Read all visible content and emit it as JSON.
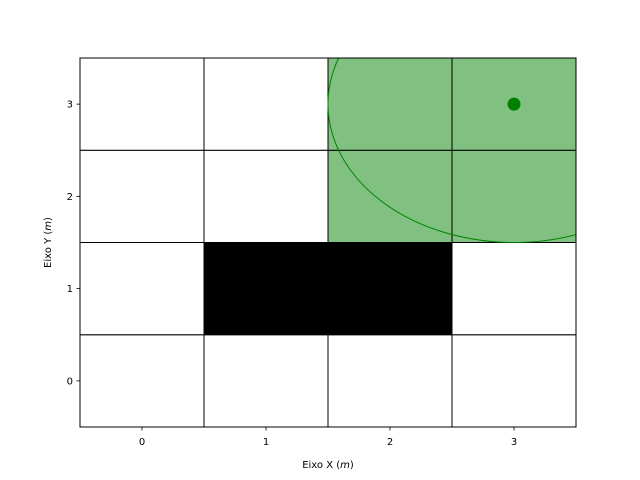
{
  "chart_data": {
    "type": "heatmap",
    "title": "",
    "xlabel": "Eixo X (m)",
    "ylabel": "Eixo Y (m)",
    "xlabel_parts": {
      "prefix": "Eixo X (",
      "unit": "m",
      "suffix": ")"
    },
    "ylabel_parts": {
      "prefix": "Eixo Y (",
      "unit": "m",
      "suffix": ")"
    },
    "xlim": [
      -0.5,
      3.5
    ],
    "ylim": [
      -0.5,
      3.5
    ],
    "x_ticks": [
      0,
      1,
      2,
      3
    ],
    "y_ticks": [
      0,
      1,
      2,
      3
    ],
    "grid": true,
    "cells": [
      {
        "x": 0,
        "y": 0,
        "state": "free"
      },
      {
        "x": 1,
        "y": 0,
        "state": "free"
      },
      {
        "x": 2,
        "y": 0,
        "state": "free"
      },
      {
        "x": 3,
        "y": 0,
        "state": "free"
      },
      {
        "x": 0,
        "y": 1,
        "state": "free"
      },
      {
        "x": 1,
        "y": 1,
        "state": "obstacle"
      },
      {
        "x": 2,
        "y": 1,
        "state": "obstacle"
      },
      {
        "x": 3,
        "y": 1,
        "state": "free"
      },
      {
        "x": 0,
        "y": 2,
        "state": "free"
      },
      {
        "x": 1,
        "y": 2,
        "state": "free"
      },
      {
        "x": 2,
        "y": 2,
        "state": "highlight"
      },
      {
        "x": 3,
        "y": 2,
        "state": "highlight"
      },
      {
        "x": 0,
        "y": 3,
        "state": "free"
      },
      {
        "x": 1,
        "y": 3,
        "state": "free"
      },
      {
        "x": 2,
        "y": 3,
        "state": "highlight"
      },
      {
        "x": 3,
        "y": 3,
        "state": "highlight"
      }
    ],
    "point": {
      "x": 3,
      "y": 3
    },
    "circle": {
      "cx": 3,
      "cy": 3,
      "r": 1.5
    },
    "colors": {
      "free": "#ffffff",
      "obstacle": "#000000",
      "highlight": "#80c080",
      "point": "#008000",
      "circle_stroke": "#008000",
      "cell_border": "#000000"
    }
  }
}
